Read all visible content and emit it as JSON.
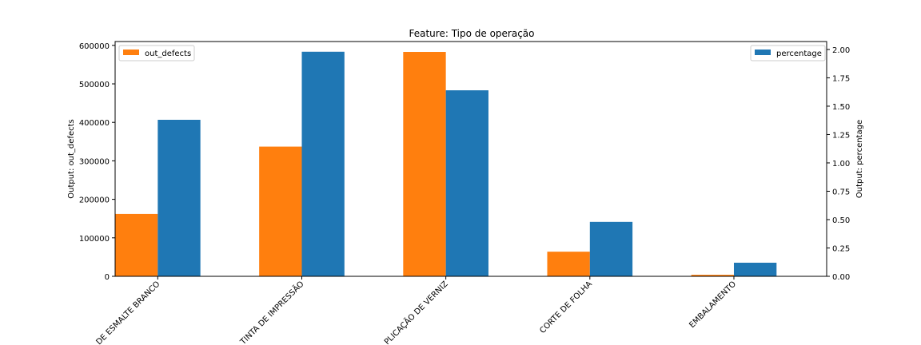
{
  "chart_data": {
    "type": "bar",
    "title": "Feature: Tipo de operação",
    "xlabel": "",
    "ylabel_left": "Output: out_defects",
    "ylabel_right": "Output: percentage",
    "categories": [
      "DE ESMALTE BRANCO",
      "TINTA DE IMPRESSÃO",
      "PLICAÇÃO DE VERNIZ",
      "CORTE DE FOLHA",
      "EMBALAMENTO"
    ],
    "series": [
      {
        "name": "out_defects",
        "axis": "left",
        "color": "#ff7f0e",
        "values": [
          162000,
          337000,
          583000,
          64000,
          4000
        ]
      },
      {
        "name": "percentage",
        "axis": "right",
        "color": "#1f77b4",
        "values": [
          1.38,
          1.98,
          1.64,
          0.48,
          0.12
        ]
      }
    ],
    "ylim_left": [
      0,
      610000
    ],
    "ylim_right": [
      0,
      2.07
    ],
    "yticks_left": [
      0,
      100000,
      200000,
      300000,
      400000,
      500000,
      600000
    ],
    "yticks_right": [
      "0.00",
      "0.25",
      "0.50",
      "0.75",
      "1.00",
      "1.25",
      "1.50",
      "1.75",
      "2.00"
    ],
    "legend_left": "top-left",
    "legend_right": "top-right",
    "grid": false
  }
}
